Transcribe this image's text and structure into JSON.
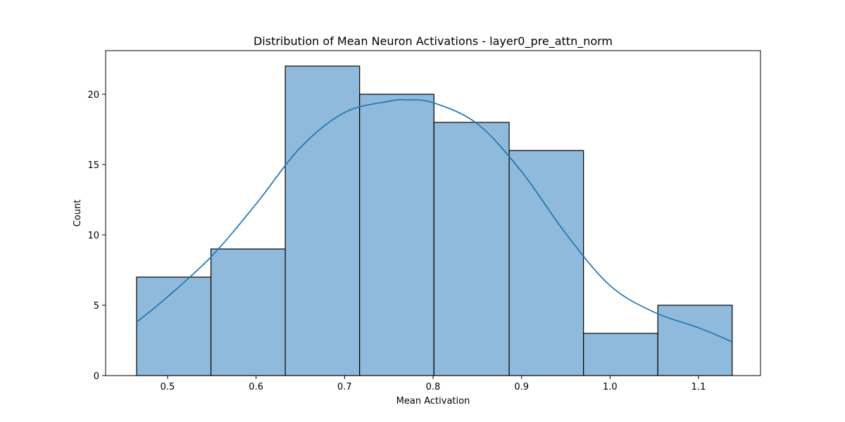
{
  "chart_data": {
    "type": "bar",
    "title": "Distribution of Mean Neuron Activations - layer0_pre_attn_norm",
    "xlabel": "Mean Activation",
    "ylabel": "Count",
    "bins": [
      {
        "start": 0.465,
        "end": 0.549,
        "count": 7
      },
      {
        "start": 0.549,
        "end": 0.633,
        "count": 9
      },
      {
        "start": 0.633,
        "end": 0.717,
        "count": 22
      },
      {
        "start": 0.717,
        "end": 0.801,
        "count": 20
      },
      {
        "start": 0.801,
        "end": 0.886,
        "count": 18
      },
      {
        "start": 0.886,
        "end": 0.97,
        "count": 16
      },
      {
        "start": 0.97,
        "end": 1.054,
        "count": 3
      },
      {
        "start": 1.054,
        "end": 1.138,
        "count": 5
      }
    ],
    "kde": {
      "x": [
        0.465,
        0.5,
        0.55,
        0.6,
        0.65,
        0.7,
        0.75,
        0.77,
        0.8,
        0.85,
        0.9,
        0.95,
        1.0,
        1.05,
        1.1,
        1.138
      ],
      "y": [
        3.8,
        5.6,
        8.5,
        12.2,
        16.2,
        18.7,
        19.5,
        19.6,
        19.4,
        17.9,
        14.5,
        10.1,
        6.4,
        4.5,
        3.4,
        2.4
      ]
    },
    "xticks": [
      0.5,
      0.6,
      0.7,
      0.8,
      0.9,
      1.0,
      1.1
    ],
    "xtick_labels": [
      "0.5",
      "0.6",
      "0.7",
      "0.8",
      "0.9",
      "1.0",
      "1.1"
    ],
    "yticks": [
      0,
      5,
      10,
      15,
      20
    ],
    "ytick_labels": [
      "0",
      "5",
      "10",
      "15",
      "20"
    ],
    "xlim": [
      0.43,
      1.17
    ],
    "ylim": [
      0,
      23.1
    ],
    "grid": false,
    "colors": {
      "bar_fill": "#8fbadb",
      "bar_edge": "#000000",
      "kde_line": "#1f77b4"
    }
  }
}
